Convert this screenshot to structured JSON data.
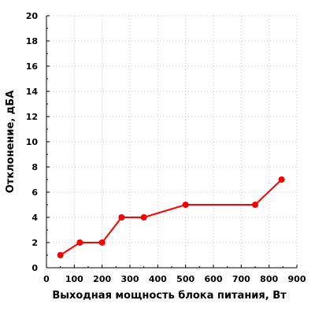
{
  "chart_data": {
    "type": "line",
    "xlabel": "Выходная мощность блока питания, Вт",
    "ylabel": "Отклонение, дБА",
    "xlim": [
      0,
      900
    ],
    "ylim": [
      0,
      20
    ],
    "x_ticks": [
      0,
      100,
      200,
      300,
      400,
      500,
      600,
      700,
      800,
      900
    ],
    "y_ticks": [
      0,
      2,
      4,
      6,
      8,
      10,
      12,
      14,
      16,
      18,
      20
    ],
    "grid": true,
    "series": [
      {
        "color": "#ff0000",
        "points": [
          {
            "x": 50,
            "y": 1
          },
          {
            "x": 120,
            "y": 2
          },
          {
            "x": 200,
            "y": 2
          },
          {
            "x": 270,
            "y": 4
          },
          {
            "x": 350,
            "y": 4
          },
          {
            "x": 500,
            "y": 5
          },
          {
            "x": 750,
            "y": 5
          },
          {
            "x": 845,
            "y": 7
          }
        ]
      }
    ]
  }
}
